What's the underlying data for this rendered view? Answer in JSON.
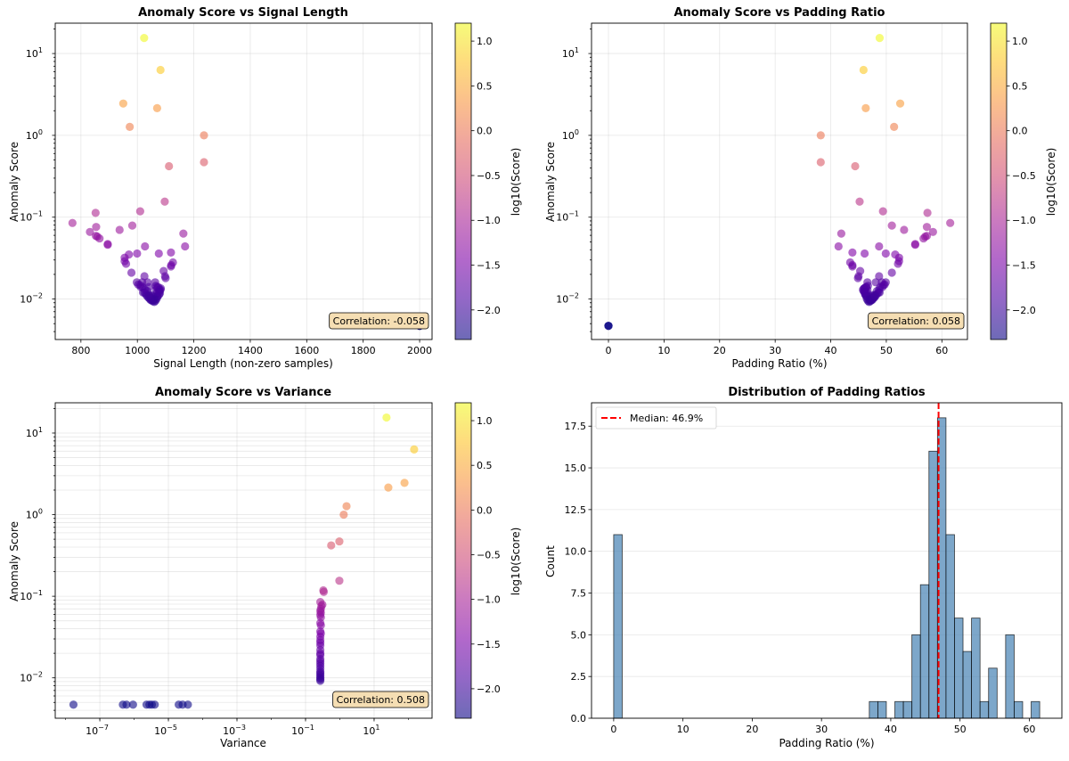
{
  "figure": {
    "colorbar_label": "log10(Score)",
    "colorbar_ticks": [
      -2.0,
      -1.5,
      -1.0,
      -0.5,
      0.0,
      0.5,
      1.0
    ],
    "colorbar_range": [
      -2.33,
      1.2
    ],
    "colormap": "plasma"
  },
  "chart_data": [
    {
      "type": "scatter",
      "id": "signal-length",
      "title": "Anomaly Score vs Signal Length",
      "xlabel": "Signal Length (non-zero samples)",
      "ylabel": "Anomaly Score",
      "xscale": "linear",
      "yscale": "log",
      "xlim": [
        709,
        2044
      ],
      "ylim": [
        0.0032,
        23.5
      ],
      "xticks": [
        800,
        1000,
        1200,
        1400,
        1600,
        1800,
        2000
      ],
      "yticks": [
        0.01,
        0.1,
        1,
        10
      ],
      "ytick_labels": [
        [
          "10",
          "−2"
        ],
        [
          "10",
          "−1"
        ],
        [
          "10",
          "0"
        ],
        [
          "10",
          "1"
        ]
      ],
      "grid": true,
      "annotation": "Correlation: -0.058",
      "points": [
        [
          1024,
          15.5
        ],
        [
          1082,
          6.3
        ],
        [
          950,
          2.45
        ],
        [
          1070,
          2.15
        ],
        [
          973,
          1.27
        ],
        [
          1236,
          1.0
        ],
        [
          1236,
          0.47
        ],
        [
          1112,
          0.42
        ],
        [
          1097,
          0.155
        ],
        [
          1010,
          0.118
        ],
        [
          852,
          0.113
        ],
        [
          770,
          0.085
        ],
        [
          854,
          0.076
        ],
        [
          982,
          0.079
        ],
        [
          937,
          0.07
        ],
        [
          832,
          0.066
        ],
        [
          1163,
          0.063
        ],
        [
          853,
          0.059
        ],
        [
          858,
          0.058
        ],
        [
          866,
          0.055
        ],
        [
          895,
          0.047
        ],
        [
          895,
          0.046
        ],
        [
          1027,
          0.044
        ],
        [
          1169,
          0.044
        ],
        [
          999,
          0.036
        ],
        [
          970,
          0.035
        ],
        [
          1076,
          0.036
        ],
        [
          1119,
          0.037
        ],
        [
          955,
          0.032
        ],
        [
          955,
          0.029
        ],
        [
          960,
          0.027
        ],
        [
          1126,
          0.028
        ],
        [
          1120,
          0.026
        ],
        [
          1119,
          0.025
        ],
        [
          979,
          0.021
        ],
        [
          1093,
          0.022
        ],
        [
          1098,
          0.019
        ],
        [
          1100,
          0.018
        ],
        [
          1025,
          0.019
        ],
        [
          998,
          0.016
        ],
        [
          1017,
          0.016
        ],
        [
          1036,
          0.016
        ],
        [
          1063,
          0.016
        ],
        [
          1003,
          0.015
        ],
        [
          1012,
          0.014
        ],
        [
          1018,
          0.014
        ],
        [
          1040,
          0.014
        ],
        [
          1069,
          0.014
        ],
        [
          1078,
          0.013
        ],
        [
          1082,
          0.013
        ],
        [
          1020,
          0.012
        ],
        [
          1025,
          0.012
        ],
        [
          1030,
          0.0115
        ],
        [
          1075,
          0.0125
        ],
        [
          1080,
          0.0118
        ],
        [
          1033,
          0.011
        ],
        [
          1038,
          0.0105
        ],
        [
          1042,
          0.0102
        ],
        [
          1046,
          0.0098
        ],
        [
          1050,
          0.0096
        ],
        [
          1055,
          0.0094
        ],
        [
          1060,
          0.0092
        ],
        [
          1064,
          0.0095
        ],
        [
          1068,
          0.01
        ],
        [
          1072,
          0.0107
        ],
        [
          1077,
          0.0113
        ],
        [
          1062,
          0.0106
        ],
        [
          1056,
          0.0108
        ],
        [
          1070,
          0.012
        ],
        [
          1074,
          0.014
        ],
        [
          1066,
          0.013
        ],
        [
          1052,
          0.0101
        ],
        [
          1044,
          0.0108
        ],
        [
          1035,
          0.0125
        ],
        [
          1058,
          0.0098
        ],
        [
          1048,
          0.0112
        ],
        [
          1079,
          0.0128
        ],
        [
          1027,
          0.013
        ],
        [
          1010,
          0.0148
        ],
        [
          1065,
          0.0145
        ],
        [
          1083,
          0.0135
        ],
        [
          1071,
          0.0108
        ],
        [
          1061,
          0.0099
        ],
        [
          1053,
          0.0097
        ],
        [
          1047,
          0.0103
        ],
        [
          1041,
          0.0112
        ],
        [
          1078,
          0.0122
        ],
        [
          2000,
          0.0047
        ],
        [
          2000,
          0.0047
        ],
        [
          2000,
          0.0047
        ]
      ]
    },
    {
      "type": "scatter",
      "id": "padding-ratio",
      "title": "Anomaly Score vs Padding Ratio",
      "xlabel": "Padding Ratio (%)",
      "ylabel": "Anomaly Score",
      "xscale": "linear",
      "yscale": "log",
      "xlim": [
        -3.05,
        64.6
      ],
      "ylim": [
        0.0032,
        23.5
      ],
      "xticks": [
        0,
        10,
        20,
        30,
        40,
        50,
        60
      ],
      "yticks": [
        0.01,
        0.1,
        1,
        10
      ],
      "ytick_labels": [
        [
          "10",
          "−2"
        ],
        [
          "10",
          "−1"
        ],
        [
          "10",
          "0"
        ],
        [
          "10",
          "1"
        ]
      ],
      "grid": true,
      "annotation": "Correlation: 0.058",
      "points": [
        [
          48.8,
          15.5
        ],
        [
          45.9,
          6.3
        ],
        [
          52.5,
          2.45
        ],
        [
          46.3,
          2.15
        ],
        [
          51.4,
          1.27
        ],
        [
          38.2,
          1.0
        ],
        [
          38.2,
          0.47
        ],
        [
          44.4,
          0.42
        ],
        [
          45.2,
          0.155
        ],
        [
          49.4,
          0.118
        ],
        [
          57.4,
          0.113
        ],
        [
          61.5,
          0.085
        ],
        [
          57.3,
          0.076
        ],
        [
          51.0,
          0.079
        ],
        [
          53.2,
          0.07
        ],
        [
          58.4,
          0.066
        ],
        [
          41.9,
          0.063
        ],
        [
          57.3,
          0.059
        ],
        [
          57.0,
          0.058
        ],
        [
          56.7,
          0.055
        ],
        [
          55.2,
          0.047
        ],
        [
          55.2,
          0.046
        ],
        [
          48.7,
          0.044
        ],
        [
          41.4,
          0.044
        ],
        [
          49.9,
          0.036
        ],
        [
          51.6,
          0.035
        ],
        [
          46.1,
          0.036
        ],
        [
          43.9,
          0.037
        ],
        [
          52.3,
          0.032
        ],
        [
          52.3,
          0.029
        ],
        [
          52.1,
          0.027
        ],
        [
          43.5,
          0.028
        ],
        [
          43.9,
          0.026
        ],
        [
          43.9,
          0.025
        ],
        [
          51.0,
          0.021
        ],
        [
          45.3,
          0.022
        ],
        [
          45.0,
          0.019
        ],
        [
          44.9,
          0.018
        ],
        [
          48.7,
          0.019
        ],
        [
          49.9,
          0.016
        ],
        [
          49.2,
          0.016
        ],
        [
          46.6,
          0.016
        ],
        [
          48.1,
          0.016
        ],
        [
          49.7,
          0.015
        ],
        [
          49.3,
          0.014
        ],
        [
          48.9,
          0.014
        ],
        [
          46.4,
          0.014
        ],
        [
          46.0,
          0.0135
        ],
        [
          45.8,
          0.013
        ],
        [
          45.9,
          0.0125
        ],
        [
          48.8,
          0.012
        ],
        [
          48.6,
          0.012
        ],
        [
          48.3,
          0.0115
        ],
        [
          46.1,
          0.012
        ],
        [
          46.2,
          0.0115
        ],
        [
          48.1,
          0.011
        ],
        [
          47.9,
          0.0105
        ],
        [
          47.7,
          0.0102
        ],
        [
          47.5,
          0.0098
        ],
        [
          47.3,
          0.0096
        ],
        [
          47.1,
          0.0094
        ],
        [
          46.9,
          0.0092
        ],
        [
          46.7,
          0.0095
        ],
        [
          46.5,
          0.01
        ],
        [
          46.4,
          0.0107
        ],
        [
          46.2,
          0.0113
        ],
        [
          46.9,
          0.0106
        ],
        [
          47.2,
          0.0108
        ],
        [
          46.5,
          0.012
        ],
        [
          46.3,
          0.014
        ],
        [
          46.6,
          0.013
        ],
        [
          47.4,
          0.0101
        ],
        [
          47.8,
          0.0108
        ],
        [
          48.3,
          0.0125
        ],
        [
          47.0,
          0.0098
        ],
        [
          47.5,
          0.0112
        ],
        [
          46.1,
          0.0128
        ],
        [
          48.7,
          0.013
        ],
        [
          49.5,
          0.0148
        ],
        [
          46.7,
          0.0145
        ],
        [
          46.0,
          0.0135
        ],
        [
          46.5,
          0.0108
        ],
        [
          47.0,
          0.0099
        ],
        [
          47.3,
          0.0097
        ],
        [
          47.6,
          0.0103
        ],
        [
          47.9,
          0.0112
        ],
        [
          46.2,
          0.0122
        ],
        [
          0,
          0.0047
        ],
        [
          0,
          0.0047
        ],
        [
          0,
          0.0047
        ]
      ]
    },
    {
      "type": "scatter",
      "id": "variance",
      "title": "Anomaly Score vs Variance",
      "xlabel": "Variance",
      "ylabel": "Anomaly Score",
      "xscale": "log",
      "yscale": "log",
      "xlim": [
        5e-09,
        490
      ],
      "ylim": [
        0.0032,
        23.5
      ],
      "xticks": [
        1e-07,
        1e-05,
        0.001,
        0.1,
        10
      ],
      "xtick_labels": [
        [
          "10",
          "−7"
        ],
        [
          "10",
          "−5"
        ],
        [
          "10",
          "−3"
        ],
        [
          "10",
          "−1"
        ],
        [
          "10",
          "1"
        ]
      ],
      "yticks": [
        0.01,
        0.1,
        1,
        10
      ],
      "ytick_labels": [
        [
          "10",
          "−2"
        ],
        [
          "10",
          "−1"
        ],
        [
          "10",
          "0"
        ],
        [
          "10",
          "1"
        ]
      ],
      "grid": "both-major-minor-y",
      "annotation": "Correlation: 0.508",
      "points": [
        [
          23,
          15.5
        ],
        [
          147,
          6.3
        ],
        [
          77,
          2.45
        ],
        [
          26,
          2.15
        ],
        [
          1.57,
          1.27
        ],
        [
          1.3,
          1.0
        ],
        [
          0.97,
          0.47
        ],
        [
          0.56,
          0.42
        ],
        [
          0.97,
          0.155
        ],
        [
          0.33,
          0.118
        ],
        [
          0.34,
          0.113
        ],
        [
          0.27,
          0.085
        ],
        [
          0.31,
          0.079
        ],
        [
          0.29,
          0.076
        ],
        [
          0.28,
          0.07
        ],
        [
          0.27,
          0.066
        ],
        [
          0.28,
          0.063
        ],
        [
          0.27,
          0.059
        ],
        [
          0.28,
          0.055
        ],
        [
          0.27,
          0.047
        ],
        [
          0.28,
          0.044
        ],
        [
          0.27,
          0.037
        ],
        [
          0.28,
          0.035
        ],
        [
          0.27,
          0.032
        ],
        [
          0.27,
          0.029
        ],
        [
          0.27,
          0.027
        ],
        [
          0.27,
          0.025
        ],
        [
          0.27,
          0.022
        ],
        [
          0.27,
          0.02
        ],
        [
          0.27,
          0.019
        ],
        [
          0.27,
          0.017
        ],
        [
          0.27,
          0.016
        ],
        [
          0.27,
          0.015
        ],
        [
          0.27,
          0.014
        ],
        [
          0.27,
          0.013
        ],
        [
          0.27,
          0.012
        ],
        [
          0.27,
          0.0115
        ],
        [
          0.27,
          0.011
        ],
        [
          0.27,
          0.0105
        ],
        [
          0.27,
          0.01
        ],
        [
          0.27,
          0.0096
        ],
        [
          0.27,
          0.0092
        ],
        [
          1.7e-08,
          0.0047
        ],
        [
          4.7e-07,
          0.0047
        ],
        [
          6e-07,
          0.0047
        ],
        [
          9.3e-07,
          0.0047
        ],
        [
          2.3e-06,
          0.0047
        ],
        [
          2.8e-06,
          0.0047
        ],
        [
          3.3e-06,
          0.0047
        ],
        [
          4e-06,
          0.0047
        ],
        [
          2e-05,
          0.0047
        ],
        [
          2.6e-05,
          0.0047
        ],
        [
          3.7e-05,
          0.0047
        ]
      ]
    },
    {
      "type": "bar",
      "id": "padding-histogram",
      "title": "Distribution of Padding Ratios",
      "xlabel": "Padding Ratio (%)",
      "ylabel": "Count",
      "xlim": [
        -3.2,
        64.7
      ],
      "ylim": [
        0,
        18.9
      ],
      "xticks": [
        0,
        10,
        20,
        30,
        40,
        50,
        60
      ],
      "yticks": [
        0.0,
        2.5,
        5.0,
        7.5,
        10.0,
        12.5,
        15.0,
        17.5
      ],
      "ytick_labels": [
        "0.0",
        "2.5",
        "5.0",
        "7.5",
        "10.0",
        "12.5",
        "15.0",
        "17.5"
      ],
      "grid": "y",
      "bin_start": 0,
      "bin_width": 1.23,
      "counts": [
        11,
        0,
        0,
        0,
        0,
        0,
        0,
        0,
        0,
        0,
        0,
        0,
        0,
        0,
        0,
        0,
        0,
        0,
        0,
        0,
        0,
        0,
        0,
        0,
        0,
        0,
        0,
        0,
        0,
        0,
        1,
        1,
        0,
        1,
        1,
        5,
        8,
        16,
        18,
        11,
        6,
        4,
        6,
        1,
        3,
        0,
        5,
        1,
        0,
        1
      ],
      "bar_color": "#4682b4",
      "median": 46.9,
      "median_color": "#ff0000",
      "legend": [
        {
          "label": "Median: 46.9%",
          "style": "dashed-red-line"
        }
      ],
      "legend_position": "upper-left"
    }
  ]
}
